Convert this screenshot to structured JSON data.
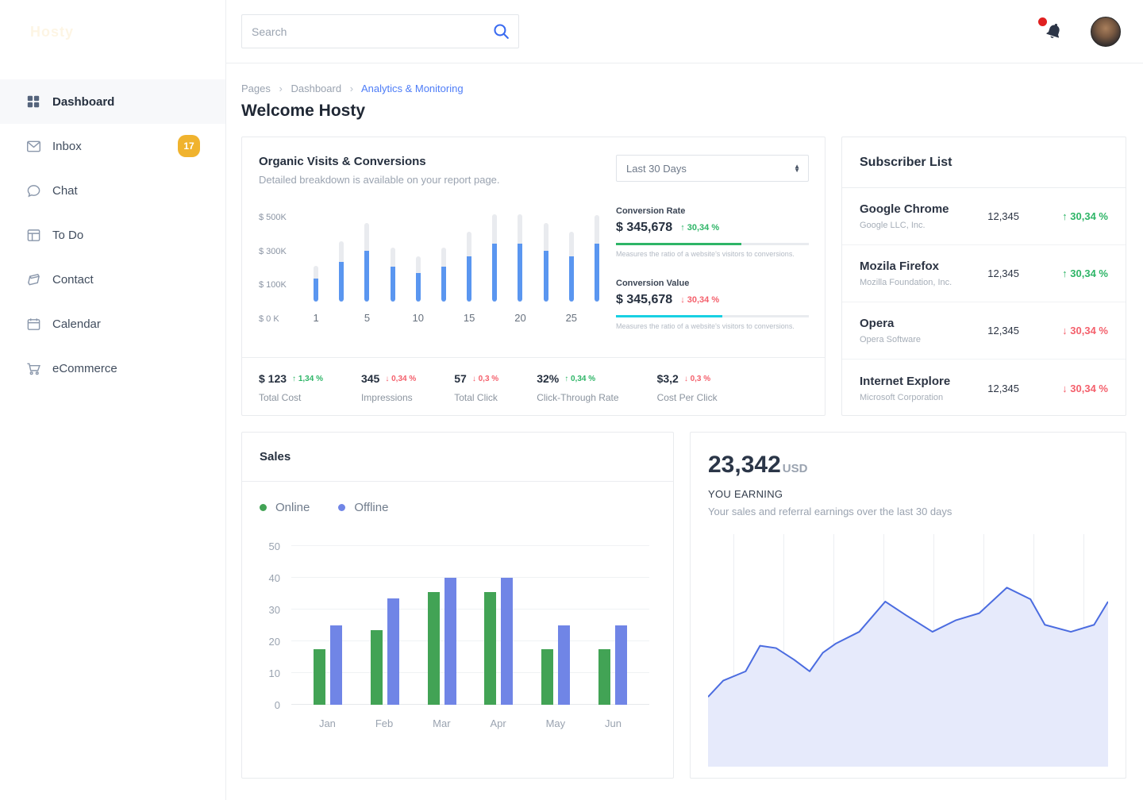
{
  "sidebar": {
    "logo": "Hosty",
    "items": [
      {
        "label": "Dashboard",
        "icon": "grid-icon",
        "active": true
      },
      {
        "label": "Inbox",
        "icon": "envelope-icon",
        "badge": "17"
      },
      {
        "label": "Chat",
        "icon": "chat-icon"
      },
      {
        "label": "To Do",
        "icon": "todo-icon"
      },
      {
        "label": "Contact",
        "icon": "contact-icon"
      },
      {
        "label": "Calendar",
        "icon": "calendar-icon"
      },
      {
        "label": "eCommerce",
        "icon": "cart-icon"
      }
    ]
  },
  "header": {
    "search_placeholder": "Search"
  },
  "breadcrumb": {
    "crumb1": "Pages",
    "crumb2": "Dashboard",
    "active": "Analytics & Monitoring",
    "separator": "›"
  },
  "page": {
    "title": "Welcome Hosty"
  },
  "organic": {
    "title": "Organic Visits & Conversions",
    "subtitle": "Detailed breakdown is available on your report page.",
    "period": "Last 30 Days",
    "metrics": [
      {
        "label": "Conversion Rate",
        "value": "$ 345,678",
        "delta": "↑ 30,34 %",
        "trend": "up",
        "bar_pct": 65,
        "bar_color": "#2eb567",
        "caption": "Measures the ratio of a website's visitors to conversions."
      },
      {
        "label": "Conversion Value",
        "value": "$ 345,678",
        "delta": "↓ 30,34 %",
        "trend": "down",
        "bar_pct": 55,
        "bar_color": "#18d0e3",
        "caption": "Measures the ratio of a website's visitors to conversions."
      }
    ],
    "stats": [
      {
        "value": "$ 123",
        "delta": "↑ 1,34 %",
        "trend": "up",
        "label": "Total Cost"
      },
      {
        "value": "345",
        "delta": "↓ 0,34 %",
        "trend": "down",
        "label": "Impressions"
      },
      {
        "value": "57",
        "delta": "↓ 0,3 %",
        "trend": "down",
        "label": "Total Click"
      },
      {
        "value": "32%",
        "delta": "↑ 0,34 %",
        "trend": "up",
        "label": "Click-Through Rate"
      },
      {
        "value": "$3,2",
        "delta": "↓ 0,3 %",
        "trend": "down",
        "label": "Cost Per Click"
      }
    ]
  },
  "subscribers": {
    "title": "Subscriber List",
    "rows": [
      {
        "name": "Google Chrome",
        "company": "Google LLC, Inc.",
        "count": "12,345",
        "delta": "↑ 30,34 %",
        "trend": "up"
      },
      {
        "name": "Mozila Firefox",
        "company": "Mozilla Foundation, Inc.",
        "count": "12,345",
        "delta": "↑ 30,34 %",
        "trend": "up"
      },
      {
        "name": "Opera",
        "company": "Opera Software",
        "count": "12,345",
        "delta": "↓ 30,34 %",
        "trend": "down"
      },
      {
        "name": "Internet Explore",
        "company": "Microsoft Corporation",
        "count": "12,345",
        "delta": "↓ 30,34 %",
        "trend": "down"
      }
    ]
  },
  "sales": {
    "title": "Sales",
    "legend": [
      {
        "label": "Online",
        "color": "#42a355"
      },
      {
        "label": "Offline",
        "color": "#7085e6"
      }
    ]
  },
  "earning": {
    "amount": "23,342",
    "currency": "USD",
    "label": "YOU EARNING",
    "description": "Your sales and referral earnings over the last 30 days"
  },
  "colors": {
    "accent_blue": "#3a6bf0",
    "link_blue": "#4e7df7",
    "green": "#2eb567",
    "red": "#f4606c",
    "cyan": "#18d0e3",
    "badge_yellow": "#f0b32e",
    "notification_red": "#e02020"
  },
  "chart_data": [
    {
      "name": "organic-visits-conversions",
      "type": "bar",
      "title": "Organic Visits & Conversions",
      "x_tick_labels": [
        "1",
        "",
        "5",
        "",
        "10",
        "",
        "15",
        "",
        "20",
        "",
        "25",
        ""
      ],
      "y_ticks": [
        "$ 500K",
        "$ 300K",
        "$ 100K",
        "$ 0 K"
      ],
      "ylim": [
        0,
        500
      ],
      "series": [
        {
          "name": "Visits",
          "color": "#e9ebef",
          "values": [
            205,
            345,
            450,
            310,
            260,
            310,
            400,
            500,
            500,
            450,
            400,
            495
          ]
        },
        {
          "name": "Conversions",
          "color": "#5a96f0",
          "values": [
            130,
            225,
            290,
            200,
            165,
            200,
            260,
            330,
            330,
            290,
            260,
            330
          ]
        }
      ]
    },
    {
      "name": "sales",
      "type": "bar",
      "title": "Sales",
      "categories": [
        "Jan",
        "Feb",
        "Mar",
        "Apr",
        "May",
        "Jun"
      ],
      "y_ticks": [
        0,
        10,
        20,
        30,
        40,
        50
      ],
      "ylim": [
        0,
        50
      ],
      "legend_position": "top-left",
      "series": [
        {
          "name": "Online",
          "color": "#42a355",
          "values": [
            17.5,
            23.5,
            35.5,
            35.5,
            17.5,
            17.5
          ]
        },
        {
          "name": "Offline",
          "color": "#7085e6",
          "values": [
            25,
            33.5,
            40,
            40,
            25,
            25
          ]
        }
      ]
    },
    {
      "name": "earning-trend",
      "type": "area",
      "title": "YOU EARNING",
      "line_color": "#4b6ce0",
      "fill_color": "#e6eafb",
      "grid": "vertical",
      "points_pct": [
        [
          0,
          30
        ],
        [
          3.8,
          37
        ],
        [
          9.4,
          41
        ],
        [
          13,
          52
        ],
        [
          17,
          51
        ],
        [
          21.5,
          46
        ],
        [
          25.4,
          41
        ],
        [
          28.7,
          49
        ],
        [
          32,
          53
        ],
        [
          37.8,
          58
        ],
        [
          44.3,
          71
        ],
        [
          49.6,
          65
        ],
        [
          56.1,
          58
        ],
        [
          62,
          63
        ],
        [
          67.8,
          66
        ],
        [
          74.7,
          77
        ],
        [
          80.6,
          72
        ],
        [
          84.2,
          61
        ],
        [
          90.7,
          58
        ],
        [
          96.5,
          61
        ],
        [
          100,
          71
        ]
      ]
    }
  ]
}
